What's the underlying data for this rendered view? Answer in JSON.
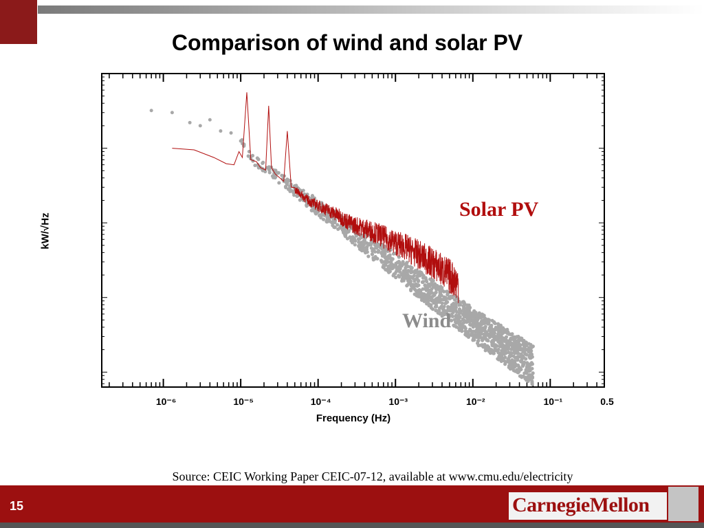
{
  "slide": {
    "title": "Comparison of wind and solar PV",
    "source": "Source: CEIC Working Paper CEIC-07-12, available at www.cmu.edu/electricity",
    "page_number": "15",
    "brand": "CarnegieMellon",
    "colors": {
      "accent": "#9c1010",
      "solar": "#b10e0e",
      "wind": "#a8a8a8"
    }
  },
  "chart_data": {
    "type": "line",
    "title": "",
    "xlabel": "Frequency (Hz)",
    "ylabel": "kW/√Hz",
    "x_scale": "log",
    "y_scale": "log",
    "xlim": [
      1.6e-07,
      0.5
    ],
    "x_ticks": [
      "10⁻⁶",
      "10⁻⁵",
      "10⁻⁴",
      "10⁻³",
      "10⁻²",
      "10⁻¹",
      "0.5"
    ],
    "grid": false,
    "series": [
      {
        "name": "Solar PV",
        "style": "line",
        "color": "#b10e0e",
        "x": [
          1.3e-06,
          2.5e-06,
          4.5e-06,
          6.5e-06,
          8.2e-06,
          9.5e-06,
          1.05e-05,
          1.2e-05,
          1.35e-05,
          1.6e-05,
          1.8e-05,
          2.1e-05,
          2.3e-05,
          2.5e-05,
          2.8e-05,
          3.2e-05,
          3.6e-05,
          4e-05,
          4.5e-05,
          5e-05,
          6e-05,
          7e-05,
          8e-05,
          0.0001,
          0.00013,
          0.00017,
          0.00022,
          0.00028,
          0.00035,
          0.00045,
          0.0006,
          0.0008,
          0.001,
          0.0013,
          0.0017,
          0.0022,
          0.0028,
          0.0035,
          0.0045,
          0.0055,
          0.0065
        ],
        "y": [
          1.0,
          0.95,
          0.75,
          0.62,
          0.6,
          0.9,
          0.75,
          5.6,
          0.7,
          0.66,
          0.55,
          0.51,
          3.7,
          0.55,
          0.45,
          0.4,
          0.36,
          1.7,
          0.3,
          0.28,
          0.24,
          0.21,
          0.19,
          0.17,
          0.15,
          0.13,
          0.11,
          0.095,
          0.088,
          0.08,
          0.071,
          0.06,
          0.054,
          0.048,
          0.041,
          0.035,
          0.03,
          0.026,
          0.021,
          0.018,
          0.015
        ]
      },
      {
        "name": "Wind",
        "style": "scatter",
        "color": "#a8a8a8",
        "x": [
          7e-07,
          1.3e-06,
          2.2e-06,
          3e-06,
          4e-06,
          5.5e-06,
          7.5e-06,
          1e-05,
          1.4e-05,
          2e-05,
          3e-05,
          5e-05,
          8e-05,
          0.00012,
          0.0002,
          0.0003,
          0.0005,
          0.0008,
          0.0012,
          0.002,
          0.003,
          0.005,
          0.008,
          0.012,
          0.02,
          0.03,
          0.045,
          0.06
        ],
        "y": [
          3.2,
          3.0,
          2.2,
          2.0,
          2.4,
          1.7,
          1.6,
          1.25,
          0.72,
          0.56,
          0.42,
          0.28,
          0.19,
          0.14,
          0.095,
          0.068,
          0.045,
          0.032,
          0.023,
          0.015,
          0.011,
          0.0075,
          0.0052,
          0.0038,
          0.0027,
          0.002,
          0.0015,
          0.0012
        ]
      }
    ]
  }
}
